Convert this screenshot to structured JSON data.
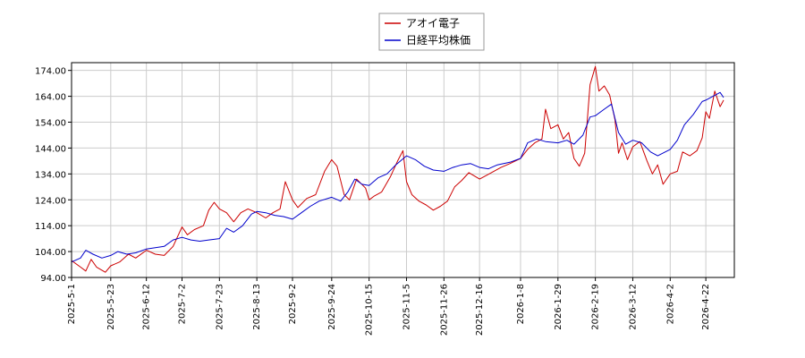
{
  "chart_data": {
    "type": "line",
    "title": "",
    "xlabel": "",
    "ylabel": "",
    "ylim": [
      94,
      177
    ],
    "xlim": [
      "2025-05-01",
      "2026-05-08"
    ],
    "grid": true,
    "legend_position": "top-center",
    "yticks": [
      "94.00",
      "104.00",
      "114.00",
      "124.00",
      "134.00",
      "144.00",
      "154.00",
      "164.00",
      "174.00"
    ],
    "xticks": [
      "2025-5-1",
      "2025-5-23",
      "2025-6-12",
      "2025-7-2",
      "2025-7-23",
      "2025-8-13",
      "2025-9-2",
      "2025-9-24",
      "2025-10-15",
      "2025-11-5",
      "2025-11-26",
      "2025-12-16",
      "2026-1-8",
      "2026-1-29",
      "2026-2-19",
      "2026-3-12",
      "2026-4-2",
      "2026-4-22"
    ],
    "series": [
      {
        "name": "アオイ電子",
        "color": "#cc0000",
        "points": [
          [
            "2025-05-01",
            100.5
          ],
          [
            "2025-05-06",
            98.0
          ],
          [
            "2025-05-09",
            96.5
          ],
          [
            "2025-05-12",
            101.0
          ],
          [
            "2025-05-15",
            98.0
          ],
          [
            "2025-05-20",
            96.0
          ],
          [
            "2025-05-23",
            98.5
          ],
          [
            "2025-05-28",
            100.0
          ],
          [
            "2025-06-02",
            103.0
          ],
          [
            "2025-06-06",
            101.5
          ],
          [
            "2025-06-12",
            104.5
          ],
          [
            "2025-06-17",
            103.0
          ],
          [
            "2025-06-22",
            102.5
          ],
          [
            "2025-06-27",
            106.0
          ],
          [
            "2025-07-02",
            113.5
          ],
          [
            "2025-07-05",
            110.5
          ],
          [
            "2025-07-09",
            112.5
          ],
          [
            "2025-07-14",
            114.0
          ],
          [
            "2025-07-17",
            120.0
          ],
          [
            "2025-07-20",
            123.0
          ],
          [
            "2025-07-23",
            120.5
          ],
          [
            "2025-07-27",
            119.0
          ],
          [
            "2025-07-31",
            115.5
          ],
          [
            "2025-08-04",
            119.0
          ],
          [
            "2025-08-08",
            120.5
          ],
          [
            "2025-08-13",
            119.0
          ],
          [
            "2025-08-18",
            117.0
          ],
          [
            "2025-08-22",
            119.0
          ],
          [
            "2025-08-26",
            120.5
          ],
          [
            "2025-08-29",
            131.0
          ],
          [
            "2025-09-02",
            124.0
          ],
          [
            "2025-09-05",
            121.0
          ],
          [
            "2025-09-10",
            124.5
          ],
          [
            "2025-09-15",
            126.0
          ],
          [
            "2025-09-20",
            135.0
          ],
          [
            "2025-09-24",
            139.5
          ],
          [
            "2025-09-27",
            137.0
          ],
          [
            "2025-10-01",
            126.0
          ],
          [
            "2025-10-04",
            124.0
          ],
          [
            "2025-10-08",
            132.0
          ],
          [
            "2025-10-13",
            128.5
          ],
          [
            "2025-10-15",
            124.0
          ],
          [
            "2025-10-18",
            125.5
          ],
          [
            "2025-10-22",
            127.0
          ],
          [
            "2025-10-27",
            133.0
          ],
          [
            "2025-10-31",
            139.0
          ],
          [
            "2025-11-03",
            143.0
          ],
          [
            "2025-11-05",
            131.0
          ],
          [
            "2025-11-08",
            126.0
          ],
          [
            "2025-11-12",
            123.5
          ],
          [
            "2025-11-16",
            122.0
          ],
          [
            "2025-11-20",
            120.0
          ],
          [
            "2025-11-24",
            121.5
          ],
          [
            "2025-11-28",
            123.5
          ],
          [
            "2025-12-02",
            129.0
          ],
          [
            "2025-12-06",
            131.5
          ],
          [
            "2025-12-10",
            134.5
          ],
          [
            "2025-12-16",
            132.0
          ],
          [
            "2025-12-20",
            133.5
          ],
          [
            "2025-12-24",
            135.0
          ],
          [
            "2025-12-28",
            136.5
          ],
          [
            "2026-01-02",
            138.0
          ],
          [
            "2026-01-08",
            140.0
          ],
          [
            "2026-01-12",
            143.5
          ],
          [
            "2026-01-16",
            146.0
          ],
          [
            "2026-01-20",
            147.5
          ],
          [
            "2026-01-22",
            159.0
          ],
          [
            "2026-01-25",
            151.5
          ],
          [
            "2026-01-29",
            153.0
          ],
          [
            "2026-02-01",
            147.5
          ],
          [
            "2026-02-04",
            150.0
          ],
          [
            "2026-02-07",
            140.0
          ],
          [
            "2026-02-10",
            137.0
          ],
          [
            "2026-02-13",
            142.0
          ],
          [
            "2026-02-16",
            168.5
          ],
          [
            "2026-02-19",
            175.5
          ],
          [
            "2026-02-21",
            166.0
          ],
          [
            "2026-02-24",
            168.0
          ],
          [
            "2026-02-27",
            164.5
          ],
          [
            "2026-03-02",
            155.0
          ],
          [
            "2026-03-04",
            142.0
          ],
          [
            "2026-03-06",
            146.0
          ],
          [
            "2026-03-09",
            139.5
          ],
          [
            "2026-03-12",
            144.5
          ],
          [
            "2026-03-16",
            146.5
          ],
          [
            "2026-03-20",
            139.0
          ],
          [
            "2026-03-23",
            134.0
          ],
          [
            "2026-03-26",
            137.5
          ],
          [
            "2026-03-29",
            130.0
          ],
          [
            "2026-04-02",
            134.0
          ],
          [
            "2026-04-06",
            135.0
          ],
          [
            "2026-04-09",
            142.5
          ],
          [
            "2026-04-13",
            141.0
          ],
          [
            "2026-04-17",
            143.0
          ],
          [
            "2026-04-20",
            148.0
          ],
          [
            "2026-04-22",
            158.0
          ],
          [
            "2026-04-24",
            155.5
          ],
          [
            "2026-04-27",
            166.0
          ],
          [
            "2026-04-30",
            160.0
          ],
          [
            "2026-05-02",
            162.5
          ]
        ]
      },
      {
        "name": "日経平均株価",
        "color": "#0000cc",
        "points": [
          [
            "2025-05-01",
            100.0
          ],
          [
            "2025-05-06",
            101.5
          ],
          [
            "2025-05-09",
            104.5
          ],
          [
            "2025-05-13",
            103.0
          ],
          [
            "2025-05-18",
            101.5
          ],
          [
            "2025-05-23",
            102.5
          ],
          [
            "2025-05-27",
            104.0
          ],
          [
            "2025-06-01",
            103.0
          ],
          [
            "2025-06-06",
            103.5
          ],
          [
            "2025-06-12",
            105.0
          ],
          [
            "2025-06-17",
            105.5
          ],
          [
            "2025-06-22",
            106.0
          ],
          [
            "2025-06-27",
            108.5
          ],
          [
            "2025-07-02",
            109.5
          ],
          [
            "2025-07-07",
            108.5
          ],
          [
            "2025-07-12",
            108.0
          ],
          [
            "2025-07-17",
            108.5
          ],
          [
            "2025-07-23",
            109.0
          ],
          [
            "2025-07-27",
            113.0
          ],
          [
            "2025-07-31",
            111.5
          ],
          [
            "2025-08-05",
            114.0
          ],
          [
            "2025-08-10",
            118.5
          ],
          [
            "2025-08-13",
            119.5
          ],
          [
            "2025-08-18",
            119.0
          ],
          [
            "2025-08-23",
            118.0
          ],
          [
            "2025-08-28",
            117.5
          ],
          [
            "2025-09-02",
            116.5
          ],
          [
            "2025-09-07",
            119.0
          ],
          [
            "2025-09-12",
            121.5
          ],
          [
            "2025-09-17",
            123.5
          ],
          [
            "2025-09-24",
            125.0
          ],
          [
            "2025-09-29",
            123.5
          ],
          [
            "2025-10-03",
            127.0
          ],
          [
            "2025-10-07",
            132.0
          ],
          [
            "2025-10-11",
            130.0
          ],
          [
            "2025-10-15",
            129.5
          ],
          [
            "2025-10-20",
            132.5
          ],
          [
            "2025-10-25",
            134.0
          ],
          [
            "2025-10-30",
            137.5
          ],
          [
            "2025-11-05",
            141.0
          ],
          [
            "2025-11-10",
            139.5
          ],
          [
            "2025-11-15",
            137.0
          ],
          [
            "2025-11-20",
            135.5
          ],
          [
            "2025-11-26",
            135.0
          ],
          [
            "2025-12-01",
            136.5
          ],
          [
            "2025-12-06",
            137.5
          ],
          [
            "2025-12-11",
            138.0
          ],
          [
            "2025-12-16",
            136.5
          ],
          [
            "2025-12-21",
            136.0
          ],
          [
            "2025-12-26",
            137.5
          ],
          [
            "2026-01-02",
            138.5
          ],
          [
            "2026-01-08",
            140.0
          ],
          [
            "2026-01-12",
            146.0
          ],
          [
            "2026-01-17",
            147.5
          ],
          [
            "2026-01-22",
            146.5
          ],
          [
            "2026-01-29",
            146.0
          ],
          [
            "2026-02-03",
            147.0
          ],
          [
            "2026-02-07",
            145.5
          ],
          [
            "2026-02-12",
            149.0
          ],
          [
            "2026-02-16",
            156.0
          ],
          [
            "2026-02-19",
            156.5
          ],
          [
            "2026-02-24",
            159.0
          ],
          [
            "2026-02-28",
            161.0
          ],
          [
            "2026-03-04",
            150.0
          ],
          [
            "2026-03-08",
            145.5
          ],
          [
            "2026-03-12",
            147.0
          ],
          [
            "2026-03-17",
            146.0
          ],
          [
            "2026-03-22",
            142.5
          ],
          [
            "2026-03-26",
            141.0
          ],
          [
            "2026-04-02",
            143.5
          ],
          [
            "2026-04-06",
            147.0
          ],
          [
            "2026-04-10",
            153.0
          ],
          [
            "2026-04-15",
            157.0
          ],
          [
            "2026-04-20",
            162.0
          ],
          [
            "2026-04-22",
            162.5
          ],
          [
            "2026-04-26",
            164.0
          ],
          [
            "2026-04-30",
            165.5
          ],
          [
            "2026-05-02",
            163.5
          ]
        ]
      }
    ]
  }
}
